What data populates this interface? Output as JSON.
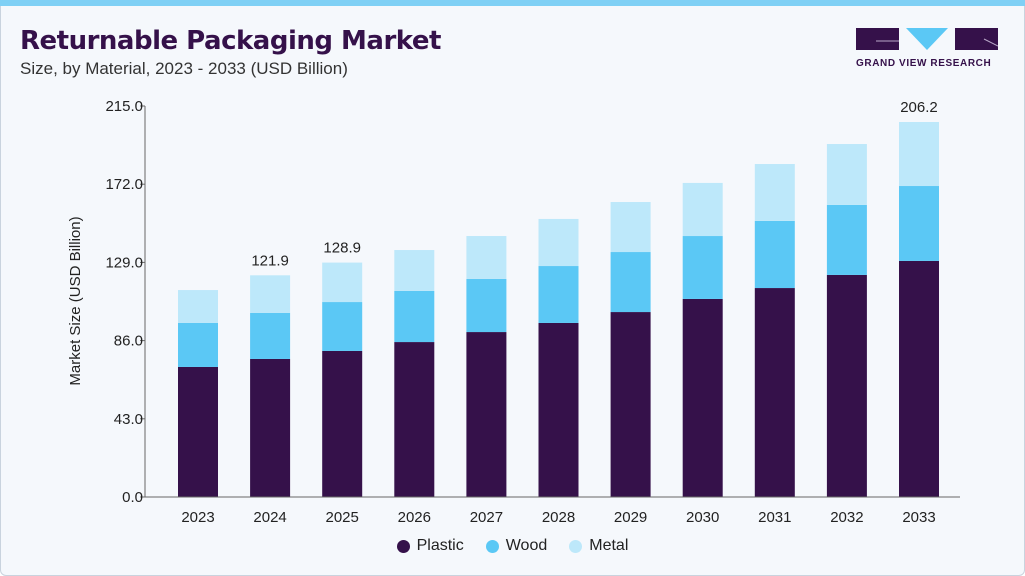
{
  "header": {
    "title": "Returnable Packaging Market",
    "subtitle": "Size, by Material, 2023 - 2033 (USD Billion)"
  },
  "logo": {
    "text": "GRAND VIEW RESEARCH"
  },
  "chart_data": {
    "type": "bar",
    "stacked": true,
    "title": "Returnable Packaging Market",
    "subtitle": "Size, by Material, 2023 - 2033 (USD Billion)",
    "xlabel": "",
    "ylabel": "Market Size (USD Billion)",
    "ylim": [
      0,
      215
    ],
    "yticks": [
      "0.0",
      "43.0",
      "86.0",
      "129.0",
      "172.0",
      "215.0"
    ],
    "categories": [
      "2023",
      "2024",
      "2025",
      "2026",
      "2027",
      "2028",
      "2029",
      "2030",
      "2031",
      "2032",
      "2033"
    ],
    "series": [
      {
        "name": "Plastic",
        "color": "#35114a",
        "values": [
          71.5,
          75.9,
          80.3,
          85.2,
          90.7,
          95.7,
          101.7,
          108.9,
          114.9,
          122.1,
          129.8
        ]
      },
      {
        "name": "Wood",
        "color": "#5bc8f5",
        "values": [
          24.2,
          25.3,
          26.9,
          28.1,
          29.2,
          31.3,
          33.0,
          34.6,
          36.9,
          38.5,
          41.2
        ]
      },
      {
        "name": "Metal",
        "color": "#bde8fa",
        "values": [
          18.1,
          20.7,
          21.7,
          22.5,
          23.6,
          25.9,
          27.5,
          29.2,
          31.3,
          33.5,
          35.2
        ]
      }
    ],
    "data_labels": {
      "2024": "121.9",
      "2025": "128.9",
      "2033": "206.2"
    },
    "grid": false,
    "legend_position": "bottom"
  }
}
